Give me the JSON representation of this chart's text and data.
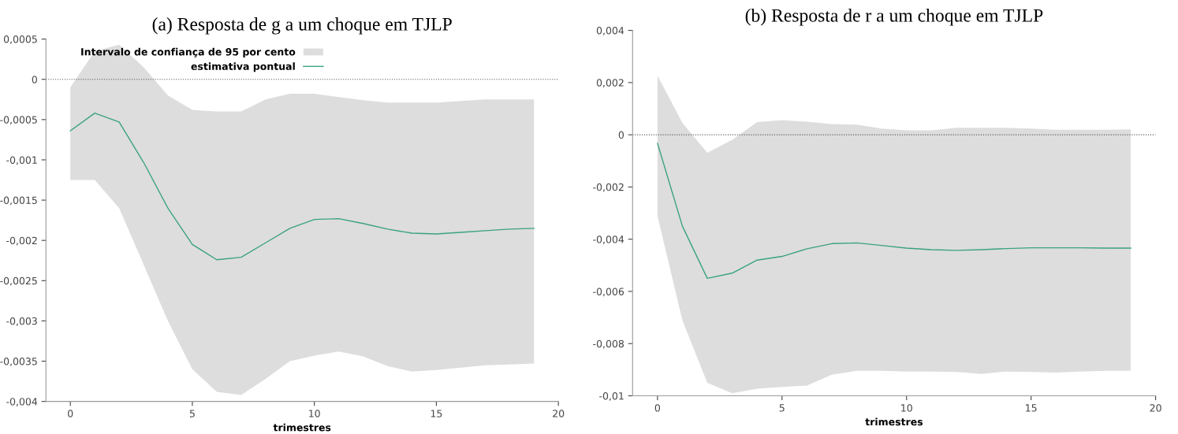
{
  "chart_data": [
    {
      "type": "line",
      "title": "(a) Resposta de g a um choque em TJLP",
      "xlabel": "trimestres",
      "annotations": [
        "Intervalo de confiança de 95 por cento"
      ],
      "x": [
        0,
        1,
        2,
        3,
        4,
        5,
        6,
        7,
        8,
        9,
        10,
        11,
        12,
        13,
        14,
        15,
        16,
        17,
        18,
        19
      ],
      "series": [
        {
          "name": "estimativa pontual",
          "color": "#3aa27f",
          "values": [
            -0.00064,
            -0.00042,
            -0.00053,
            -0.00103,
            -0.0016,
            -0.00205,
            -0.00224,
            -0.00221,
            -0.00203,
            -0.00185,
            -0.00174,
            -0.00173,
            -0.00179,
            -0.00186,
            -0.00191,
            -0.00192,
            -0.0019,
            -0.00188,
            -0.00186,
            -0.00185
          ],
          "lower": [
            -0.00125,
            -0.00125,
            -0.0016,
            -0.0023,
            -0.003,
            -0.0036,
            -0.00388,
            -0.00392,
            -0.00372,
            -0.0035,
            -0.00343,
            -0.00338,
            -0.00344,
            -0.00356,
            -0.00363,
            -0.00361,
            -0.00358,
            -0.00355,
            -0.00354,
            -0.00353
          ],
          "upper": [
            -0.0001,
            0.00035,
            0.00043,
            0.00015,
            -0.0002,
            -0.00038,
            -0.0004,
            -0.0004,
            -0.00025,
            -0.00018,
            -0.00018,
            -0.00022,
            -0.00026,
            -0.00029,
            -0.00029,
            -0.00029,
            -0.00027,
            -0.00025,
            -0.00025,
            -0.00025
          ]
        }
      ],
      "xlim": [
        -1,
        20
      ],
      "xticks": [
        0,
        5,
        10,
        15,
        20
      ],
      "ylim": [
        -0.004,
        0.0005
      ],
      "yticks": [
        {
          "value": 0.0005,
          "label": "0,0005"
        },
        0,
        {
          "value": -0.0005,
          "label": "-0,0005"
        },
        {
          "value": -0.001,
          "label": "-0,001"
        },
        {
          "value": -0.0015,
          "label": "-0,0015"
        },
        {
          "value": -0.002,
          "label": "-0,002"
        },
        {
          "value": -0.0025,
          "label": "-0,0025"
        },
        {
          "value": -0.003,
          "label": "-0,003"
        },
        {
          "value": -0.0035,
          "label": "-0,0035"
        },
        {
          "value": -0.004,
          "label": "-0,004"
        }
      ],
      "ref_lines": [
        {
          "axis": "y",
          "value": 0,
          "color": "#555555",
          "line_style": "dotted"
        }
      ],
      "grid": false,
      "legend": "top left"
    },
    {
      "type": "line",
      "title": "(b) Resposta de r a um choque em TJLP",
      "xlabel": "trimestres",
      "x": [
        0,
        1,
        2,
        3,
        4,
        5,
        6,
        7,
        8,
        9,
        10,
        11,
        12,
        13,
        14,
        15,
        16,
        17,
        18,
        19
      ],
      "series": [
        {
          "color": "#3aa27f",
          "values": [
            -0.00033,
            -0.0035,
            -0.0055,
            -0.0053,
            -0.0048,
            -0.00466,
            -0.00437,
            -0.00417,
            -0.00414,
            -0.00424,
            -0.00434,
            -0.0044,
            -0.00443,
            -0.0044,
            -0.00436,
            -0.00433,
            -0.00433,
            -0.00433,
            -0.00434,
            -0.00434
          ],
          "lower": [
            -0.00311,
            -0.00711,
            -0.0095,
            -0.0099,
            -0.00973,
            -0.00966,
            -0.00961,
            -0.00919,
            -0.00904,
            -0.00904,
            -0.00907,
            -0.00907,
            -0.00909,
            -0.00916,
            -0.00907,
            -0.00909,
            -0.00911,
            -0.00907,
            -0.00904,
            -0.00904
          ],
          "upper": [
            0.00227,
            0.00046,
            -0.00069,
            -0.00019,
            0.00049,
            0.00056,
            0.0005,
            0.00041,
            0.00039,
            0.00024,
            0.00017,
            0.00017,
            0.00027,
            0.00027,
            0.00027,
            0.00024,
            0.00019,
            0.00019,
            0.00019,
            0.00021
          ]
        }
      ],
      "xlim": [
        -1,
        20
      ],
      "xticks": [
        0,
        5,
        10,
        15,
        20
      ],
      "ylim": [
        -0.01,
        0.004
      ],
      "yticks": [
        {
          "value": 0.004,
          "label": "0,004"
        },
        {
          "value": 0.002,
          "label": "0,002"
        },
        0,
        {
          "value": -0.002,
          "label": "-0,002"
        },
        {
          "value": -0.004,
          "label": "-0,004"
        },
        {
          "value": -0.006,
          "label": "-0,006"
        },
        {
          "value": -0.008,
          "label": "-0,008"
        },
        {
          "value": -0.01,
          "label": "-0,01"
        }
      ],
      "ref_lines": [
        {
          "axis": "y",
          "value": 0,
          "color": "#555555",
          "line_style": "dotted"
        }
      ],
      "grid": false
    }
  ]
}
